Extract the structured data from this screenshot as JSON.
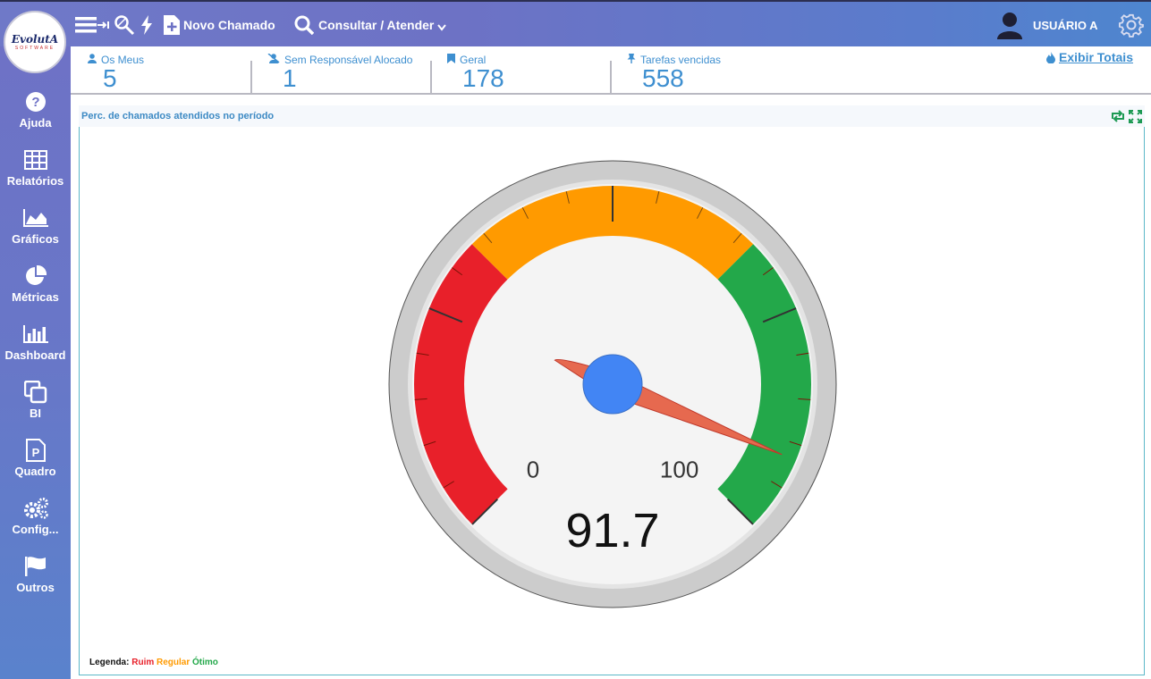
{
  "topbar": {
    "logo": {
      "brand": "EvolutA",
      "sub": "SOFTWARE"
    },
    "icons": [
      "menu-icon",
      "enter-icon",
      "search-tools-icon",
      "bolt-icon",
      "new-doc-icon"
    ],
    "novo_chamado": "Novo Chamado",
    "consultar": "Consultar / Atender",
    "user": "USUÁRIO A"
  },
  "sidebar": {
    "items": [
      {
        "label": "Ajuda",
        "icon": "help-icon"
      },
      {
        "label": "Relatórios",
        "icon": "table-icon"
      },
      {
        "label": "Gráficos",
        "icon": "area-chart-icon"
      },
      {
        "label": "Métricas",
        "icon": "pie-chart-icon"
      },
      {
        "label": "Dashboard",
        "icon": "bar-chart-icon"
      },
      {
        "label": "BI",
        "icon": "copy-icon"
      },
      {
        "label": "Quadro",
        "icon": "board-icon"
      },
      {
        "label": "Config...",
        "icon": "gears-icon"
      },
      {
        "label": "Outros",
        "icon": "flag-icon"
      }
    ]
  },
  "counters": [
    {
      "label": "Os Meus",
      "value": "5",
      "icon": "user-icon"
    },
    {
      "label": "Sem Responsável Alocado",
      "value": "1",
      "icon": "user-slash-icon"
    },
    {
      "label": "Geral",
      "value": "178",
      "icon": "bookmark-icon"
    },
    {
      "label": "Tarefas vencidas",
      "value": "558",
      "icon": "pin-icon"
    }
  ],
  "exibir_totais": "Exibir Totais",
  "panel": {
    "title": "Perc. de chamados atendidos no período"
  },
  "legend": {
    "prefix": "Legenda:",
    "ruim": "Ruim",
    "regular": "Regular",
    "otimo": "Ótimo"
  },
  "colors": {
    "ruim": "#e8202a",
    "regular": "#ff9a00",
    "otimo": "#23a84a",
    "accent": "#3e8fd0",
    "needle": "#e6694f",
    "hub": "#4285f4"
  },
  "chart_data": {
    "type": "gauge",
    "min": 0,
    "max": 100,
    "value": 91.7,
    "min_label": "0",
    "max_label": "100",
    "value_label": "91.7",
    "bands": [
      {
        "name": "Ruim",
        "from": 0,
        "to": 33.3,
        "color": "#e8202a"
      },
      {
        "name": "Regular",
        "from": 33.3,
        "to": 66.7,
        "color": "#ff9a00"
      },
      {
        "name": "Ótimo",
        "from": 66.7,
        "to": 100,
        "color": "#23a84a"
      }
    ]
  }
}
